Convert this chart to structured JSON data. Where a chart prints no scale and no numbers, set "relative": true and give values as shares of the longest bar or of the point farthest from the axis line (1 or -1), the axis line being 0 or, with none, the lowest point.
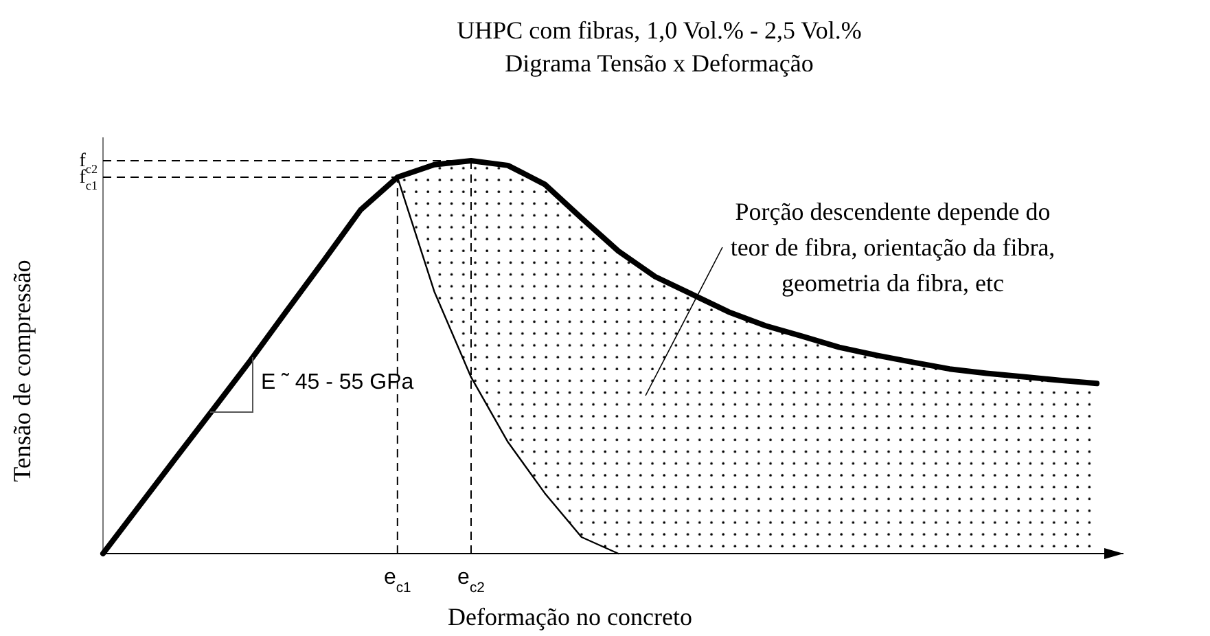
{
  "chart_data": {
    "type": "line",
    "relative": true,
    "title": "UHPC com fibras, 1,0 Vol.% - 2,5 Vol.%",
    "subtitle": "Digrama Tensão x Deformação",
    "xlabel": "Deformação no concreto",
    "ylabel": "Tensão de compressão",
    "marker": "none",
    "line_style": "solid",
    "grid": "x",
    "categories": [
      null,
      null,
      null,
      null,
      null,
      null,
      null,
      null,
      "e$_{c1}$",
      null,
      "e$_{c2}$",
      null,
      null,
      null,
      null,
      null,
      null,
      null,
      null,
      null,
      null,
      null,
      null,
      null,
      null,
      null,
      null,
      null
    ],
    "series": [
      {
        "color": "#000000",
        "lower": [
          null,
          null,
          null,
          null,
          null,
          null,
          null,
          null,
          0.958,
          0.667,
          0.449,
          0.284,
          0.154,
          0.042,
          0,
          0,
          0,
          0,
          0,
          0,
          0,
          0,
          0,
          0,
          0,
          0,
          0,
          0
        ],
        "upper": [
          null,
          null,
          null,
          null,
          null,
          null,
          null,
          null,
          0.958,
          0.99,
          1,
          0.988,
          0.94,
          0.854,
          0.77,
          0.705,
          0.66,
          0.615,
          0.58,
          0.553,
          0.525,
          0.505,
          0.487,
          0.47,
          0.459,
          0.45,
          0.441,
          0.433
        ],
        "values": [
          0,
          0.123,
          0.246,
          0.368,
          0.491,
          0.619,
          0.746,
          0.875,
          0.958,
          0.99,
          1,
          0.988,
          0.94,
          0.854,
          0.77,
          0.705,
          0.66,
          0.615,
          0.58,
          0.553,
          0.525,
          0.505,
          0.487,
          0.47,
          0.459,
          0.45,
          0.441,
          0.433
        ]
      },
      {
        "color": "#000000",
        "values": [
          null,
          null,
          null,
          null,
          null,
          null,
          null,
          null,
          0.958,
          0.667,
          0.449,
          0.284,
          0.154,
          0.042,
          0,
          null,
          null,
          null,
          null,
          null,
          null,
          null,
          null,
          null,
          null,
          null,
          null,
          null
        ]
      }
    ],
    "ref_lines": [
      {
        "axis": "y",
        "value": 1,
        "label": "f$_{c2}$",
        "line_style": "dashed"
      },
      {
        "axis": "y",
        "value": 0.958,
        "label": "f$_{c1}$",
        "line_style": "dashed"
      }
    ],
    "annotations": [
      "E ˜ 45 - 55 GPa",
      "Porção descendente depende do\nteor de fibra, orientação da fibra,\ngeometria da fibra, etc"
    ]
  }
}
